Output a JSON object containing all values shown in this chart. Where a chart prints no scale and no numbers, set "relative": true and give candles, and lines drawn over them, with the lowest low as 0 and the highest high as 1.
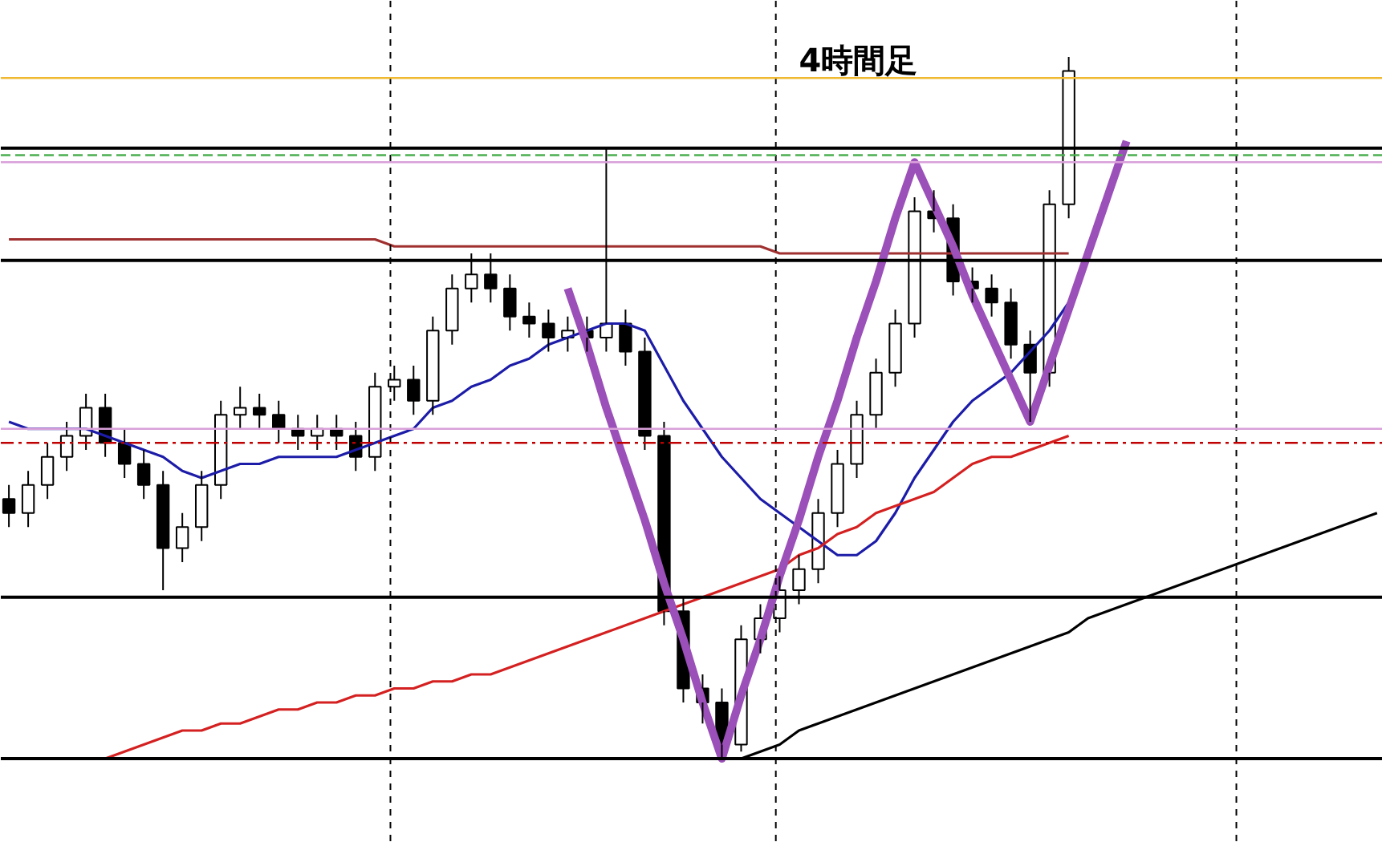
{
  "chart_data": {
    "type": "candlestick",
    "title": "4時間足",
    "relative": true,
    "color": "#000000",
    "grid": false,
    "categories": [
      null,
      null,
      null,
      null,
      null,
      null,
      null,
      null,
      null,
      null,
      null,
      null,
      null,
      null,
      null,
      null,
      null,
      null,
      null,
      null,
      null,
      null,
      null,
      null,
      null,
      null,
      null,
      null,
      null,
      null,
      null,
      null,
      null,
      null,
      null,
      null,
      null,
      null,
      null,
      null,
      null,
      null,
      null,
      null,
      null,
      null,
      null,
      null,
      null,
      null,
      null,
      null,
      null,
      null,
      null,
      null,
      null,
      null,
      null,
      null,
      null,
      null,
      null,
      null,
      null,
      null,
      null,
      null,
      null,
      null,
      null,
      null
    ],
    "ohlc": [
      [
        0.37,
        0.39,
        0.33,
        0.35
      ],
      [
        0.35,
        0.41,
        0.33,
        0.39
      ],
      [
        0.39,
        0.45,
        0.37,
        0.43
      ],
      [
        0.43,
        0.48,
        0.41,
        0.46
      ],
      [
        0.46,
        0.52,
        0.44,
        0.5
      ],
      [
        0.5,
        0.52,
        0.43,
        0.45
      ],
      [
        0.45,
        0.47,
        0.4,
        0.42
      ],
      [
        0.42,
        0.44,
        0.37,
        0.39
      ],
      [
        0.39,
        0.41,
        0.24,
        0.3
      ],
      [
        0.3,
        0.35,
        0.28,
        0.33
      ],
      [
        0.33,
        0.41,
        0.31,
        0.39
      ],
      [
        0.39,
        0.51,
        0.37,
        0.49
      ],
      [
        0.49,
        0.53,
        0.47,
        0.5
      ],
      [
        0.5,
        0.52,
        0.47,
        0.49
      ],
      [
        0.49,
        0.51,
        0.45,
        0.47
      ],
      [
        0.47,
        0.49,
        0.44,
        0.46
      ],
      [
        0.46,
        0.49,
        0.44,
        0.47
      ],
      [
        0.47,
        0.49,
        0.44,
        0.46
      ],
      [
        0.46,
        0.48,
        0.41,
        0.43
      ],
      [
        0.43,
        0.55,
        0.41,
        0.53
      ],
      [
        0.53,
        0.56,
        0.51,
        0.54
      ],
      [
        0.54,
        0.56,
        0.49,
        0.51
      ],
      [
        0.51,
        0.63,
        0.49,
        0.61
      ],
      [
        0.61,
        0.69,
        0.59,
        0.67
      ],
      [
        0.67,
        0.72,
        0.65,
        0.69
      ],
      [
        0.69,
        0.72,
        0.65,
        0.67
      ],
      [
        0.67,
        0.69,
        0.61,
        0.63
      ],
      [
        0.63,
        0.65,
        0.6,
        0.62
      ],
      [
        0.62,
        0.64,
        0.58,
        0.6
      ],
      [
        0.6,
        0.63,
        0.58,
        0.61
      ],
      [
        0.61,
        0.63,
        0.58,
        0.6
      ],
      [
        0.6,
        0.87,
        0.58,
        0.62
      ],
      [
        0.62,
        0.64,
        0.56,
        0.58
      ],
      [
        0.58,
        0.6,
        0.44,
        0.46
      ],
      [
        0.46,
        0.48,
        0.19,
        0.21
      ],
      [
        0.21,
        0.23,
        0.08,
        0.1
      ],
      [
        0.1,
        0.12,
        0.05,
        0.08
      ],
      [
        0.08,
        0.1,
        0.0,
        0.02
      ],
      [
        0.02,
        0.19,
        0.01,
        0.17
      ],
      [
        0.17,
        0.22,
        0.15,
        0.2
      ],
      [
        0.2,
        0.26,
        0.18,
        0.24
      ],
      [
        0.24,
        0.29,
        0.22,
        0.27
      ],
      [
        0.27,
        0.37,
        0.25,
        0.35
      ],
      [
        0.35,
        0.44,
        0.33,
        0.42
      ],
      [
        0.42,
        0.51,
        0.4,
        0.49
      ],
      [
        0.49,
        0.57,
        0.47,
        0.55
      ],
      [
        0.55,
        0.64,
        0.53,
        0.62
      ],
      [
        0.62,
        0.8,
        0.6,
        0.78
      ],
      [
        0.78,
        0.81,
        0.75,
        0.77
      ],
      [
        0.77,
        0.79,
        0.66,
        0.68
      ],
      [
        0.68,
        0.7,
        0.65,
        0.67
      ],
      [
        0.67,
        0.69,
        0.63,
        0.65
      ],
      [
        0.65,
        0.67,
        0.57,
        0.59
      ],
      [
        0.59,
        0.61,
        0.48,
        0.55
      ],
      [
        0.55,
        0.81,
        0.53,
        0.79
      ],
      [
        0.79,
        1.0,
        0.77,
        0.98
      ],
      null,
      null,
      null,
      null,
      null,
      null,
      null,
      null,
      null,
      null,
      null,
      null,
      null,
      null,
      null,
      null
    ],
    "series": [
      {
        "type": "line",
        "color": "#1c1ca8",
        "values": [
          0.48,
          0.47,
          0.47,
          0.47,
          0.47,
          0.46,
          0.45,
          0.44,
          0.43,
          0.41,
          0.4,
          0.41,
          0.42,
          0.42,
          0.43,
          0.43,
          0.43,
          0.43,
          0.44,
          0.45,
          0.46,
          0.47,
          0.5,
          0.51,
          0.53,
          0.54,
          0.56,
          0.57,
          0.59,
          0.6,
          0.61,
          0.62,
          0.62,
          0.61,
          0.56,
          0.51,
          0.47,
          0.43,
          0.4,
          0.37,
          0.35,
          0.33,
          0.31,
          0.29,
          0.29,
          0.31,
          0.35,
          0.4,
          0.44,
          0.48,
          0.51,
          0.53,
          0.55,
          0.58,
          0.61,
          0.65,
          null,
          null,
          null,
          null,
          null,
          null,
          null,
          null,
          null,
          null,
          null,
          null,
          null,
          null,
          null,
          null
        ]
      },
      {
        "type": "line",
        "color": "#d42020",
        "values": [
          null,
          null,
          null,
          null,
          null,
          0.0,
          0.01,
          0.02,
          0.03,
          0.04,
          0.04,
          0.05,
          0.05,
          0.06,
          0.07,
          0.07,
          0.08,
          0.08,
          0.09,
          0.09,
          0.1,
          0.1,
          0.11,
          0.11,
          0.12,
          0.12,
          0.13,
          0.14,
          0.15,
          0.16,
          0.17,
          0.18,
          0.19,
          0.2,
          0.21,
          0.22,
          0.23,
          0.24,
          0.25,
          0.26,
          0.27,
          0.29,
          0.3,
          0.32,
          0.33,
          0.35,
          0.36,
          0.37,
          0.38,
          0.4,
          0.42,
          0.43,
          0.43,
          0.44,
          0.45,
          0.46,
          null,
          null,
          null,
          null,
          null,
          null,
          null,
          null,
          null,
          null,
          null,
          null,
          null,
          null,
          null,
          null
        ]
      },
      {
        "type": "line",
        "color": "#a03030",
        "values": [
          0.74,
          0.74,
          0.74,
          0.74,
          0.74,
          0.74,
          0.74,
          0.74,
          0.74,
          0.74,
          0.74,
          0.74,
          0.74,
          0.74,
          0.74,
          0.74,
          0.74,
          0.74,
          0.74,
          0.74,
          0.73,
          0.73,
          0.73,
          0.73,
          0.73,
          0.73,
          0.73,
          0.73,
          0.73,
          0.73,
          0.73,
          0.73,
          0.73,
          0.73,
          0.73,
          0.73,
          0.73,
          0.73,
          0.73,
          0.73,
          0.72,
          0.72,
          0.72,
          0.72,
          0.72,
          0.72,
          0.72,
          0.72,
          0.72,
          0.72,
          0.72,
          0.72,
          0.72,
          0.72,
          0.72,
          0.72,
          null,
          null,
          null,
          null,
          null,
          null,
          null,
          null,
          null,
          null,
          null,
          null,
          null,
          null,
          null,
          null
        ]
      },
      {
        "type": "line",
        "color": "#000000",
        "values": [
          null,
          null,
          null,
          null,
          null,
          null,
          null,
          null,
          null,
          null,
          null,
          null,
          null,
          null,
          null,
          null,
          null,
          null,
          null,
          null,
          null,
          null,
          null,
          null,
          null,
          null,
          null,
          null,
          null,
          null,
          null,
          null,
          null,
          null,
          null,
          null,
          null,
          null,
          0.0,
          0.01,
          0.02,
          0.04,
          0.05,
          0.06,
          0.07,
          0.08,
          0.09,
          0.1,
          0.11,
          0.12,
          0.13,
          0.14,
          0.15,
          0.16,
          0.17,
          0.18,
          0.2,
          0.21,
          0.22,
          0.23,
          0.24,
          0.25,
          0.26,
          0.27,
          0.28,
          0.29,
          0.3,
          0.31,
          0.32,
          0.33,
          0.34,
          0.35
        ]
      },
      {
        "type": "line",
        "color": "#9b4fb8",
        "values": [
          null,
          null,
          null,
          null,
          null,
          null,
          null,
          null,
          null,
          null,
          null,
          null,
          null,
          null,
          null,
          null,
          null,
          null,
          null,
          null,
          null,
          null,
          null,
          null,
          null,
          null,
          null,
          null,
          null,
          0.67,
          0.59,
          0.5,
          0.42,
          0.34,
          0.25,
          0.17,
          0.08,
          0.0,
          0.09,
          0.17,
          0.26,
          0.34,
          0.43,
          0.51,
          0.6,
          0.68,
          0.77,
          0.85,
          0.79,
          0.73,
          0.66,
          0.6,
          0.54,
          0.48,
          0.56,
          0.64,
          0.72,
          0.8,
          0.88,
          null,
          null,
          null,
          null,
          null,
          null,
          null,
          null,
          null,
          null,
          null,
          null,
          null
        ]
      }
    ],
    "ref_lines": [
      {
        "axis": "y",
        "value": 0.97,
        "color": "#f0b830",
        "line_style": "solid"
      },
      {
        "axis": "y",
        "value": 0.87,
        "color": "#000000",
        "line_style": "solid"
      },
      {
        "axis": "y",
        "value": 0.86,
        "color": "#4caf50",
        "line_style": "dashed"
      },
      {
        "axis": "y",
        "value": 0.85,
        "color": "#d9a0d9",
        "line_style": "solid"
      },
      {
        "axis": "y",
        "value": 0.71,
        "color": "#000000",
        "line_style": "solid"
      },
      {
        "axis": "y",
        "value": 0.47,
        "color": "#d9a0d9",
        "line_style": "solid"
      },
      {
        "axis": "y",
        "value": 0.45,
        "color": "#c00000",
        "line_style": "dashdot"
      },
      {
        "axis": "y",
        "value": 0.23,
        "color": "#000000",
        "line_style": "solid"
      },
      {
        "axis": "y",
        "value": 0.0,
        "color": "#000000",
        "line_style": "solid"
      }
    ]
  }
}
